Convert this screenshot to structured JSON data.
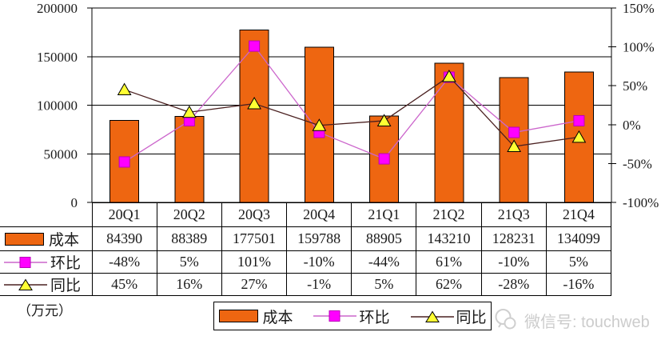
{
  "chart_data": {
    "type": "bar",
    "subtype": "combo-bar-line",
    "title": "",
    "categories": [
      "20Q1",
      "20Q2",
      "20Q3",
      "20Q4",
      "21Q1",
      "21Q2",
      "21Q3",
      "21Q4"
    ],
    "series": [
      {
        "name": "成本",
        "type": "bar",
        "axis": "left",
        "values": [
          84390,
          88389,
          177501,
          159788,
          88905,
          143210,
          128231,
          134099
        ],
        "color": "#EE6611",
        "border_color": "#000000"
      },
      {
        "name": "环比",
        "type": "line",
        "axis": "right",
        "unit": "%",
        "values": [
          -48,
          5,
          101,
          -10,
          -44,
          61,
          -10,
          5
        ],
        "line_color": "#CC66CC",
        "marker": "square",
        "marker_color": "#FF00FF",
        "marker_border": "#BB00BB"
      },
      {
        "name": "同比",
        "type": "line",
        "axis": "right",
        "unit": "%",
        "values": [
          45,
          16,
          27,
          -1,
          5,
          62,
          -28,
          -16
        ],
        "line_color": "#4A2020",
        "marker": "triangle",
        "marker_color": "#FFFF33",
        "marker_border": "#000000"
      }
    ],
    "left_axis": {
      "min": 0,
      "max": 200000,
      "tick_labels_top_to_bottom": [
        "200000",
        "150000",
        "100000",
        "50000",
        "0"
      ]
    },
    "right_axis": {
      "min": -100,
      "max": 150,
      "tick_labels_top_to_bottom": [
        "150%",
        "100%",
        "50%",
        "0%",
        "-50%",
        "-100%"
      ]
    },
    "grid": "horizontal",
    "legend_position": "bottom",
    "unit_label": "（万元）"
  },
  "table": {
    "header": [
      "20Q1",
      "20Q2",
      "20Q3",
      "20Q4",
      "21Q1",
      "21Q2",
      "21Q3",
      "21Q4"
    ],
    "rows": [
      {
        "label": "成本",
        "swatch": "bar",
        "values": [
          "84390",
          "88389",
          "177501",
          "159788",
          "88905",
          "143210",
          "128231",
          "134099"
        ]
      },
      {
        "label": "环比",
        "swatch": "square",
        "values": [
          "-48%",
          "5%",
          "101%",
          "-10%",
          "-44%",
          "61%",
          "-10%",
          "5%"
        ]
      },
      {
        "label": "同比",
        "swatch": "triangle",
        "values": [
          "45%",
          "16%",
          "27%",
          "-1%",
          "5%",
          "62%",
          "-28%",
          "-16%"
        ]
      }
    ]
  },
  "footer": {
    "text": "微信号: touchweb"
  }
}
